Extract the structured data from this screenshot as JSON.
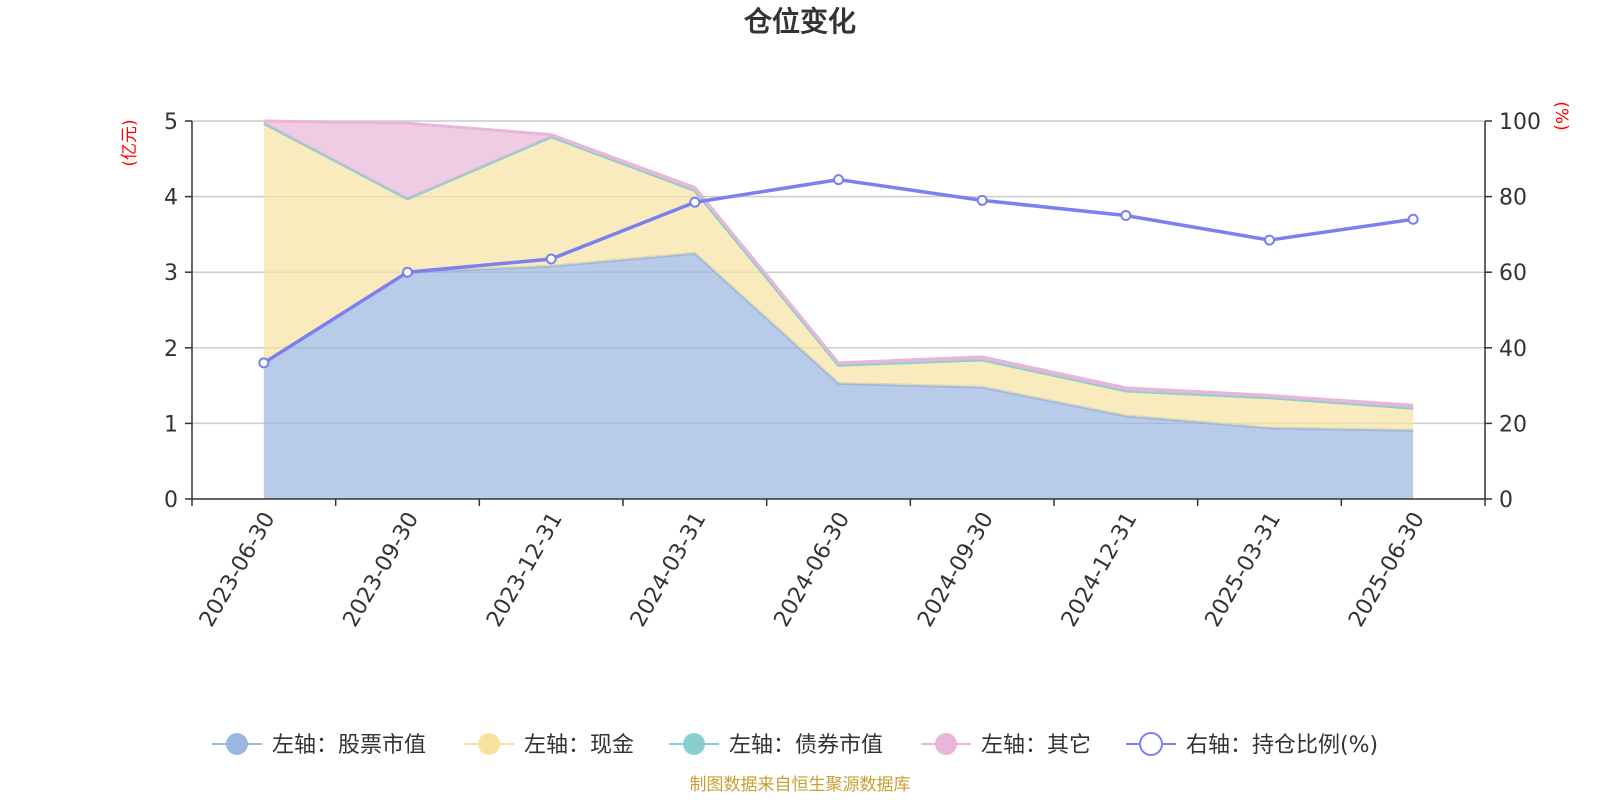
{
  "title": "仓位变化",
  "source": "制图数据来自恒生聚源数据库",
  "chart_data": {
    "type": "area",
    "categories": [
      "2023-06-30",
      "2023-09-30",
      "2023-12-31",
      "2024-03-31",
      "2024-06-30",
      "2024-09-30",
      "2024-12-31",
      "2025-03-31",
      "2025-06-30"
    ],
    "left_axis": {
      "unit": "(亿元)",
      "ylim": [
        0,
        5
      ],
      "ticks": [
        "0",
        "1",
        "2",
        "3",
        "4",
        "5"
      ]
    },
    "right_axis": {
      "unit": "(%)",
      "ylim": [
        0,
        100
      ],
      "ticks": [
        "0",
        "20",
        "40",
        "60",
        "80",
        "100"
      ]
    },
    "grid": true,
    "legend_placement": "bottom",
    "series": [
      {
        "name": "左轴：股票市值",
        "axis": "left",
        "stack": true,
        "color": "#9ab7e0",
        "values": [
          1.8,
          3.0,
          3.08,
          3.25,
          1.53,
          1.48,
          1.1,
          0.94,
          0.91
        ]
      },
      {
        "name": "左轴：现金",
        "axis": "left",
        "stack": true,
        "color": "#f7e3a1",
        "values": [
          3.17,
          0.97,
          1.71,
          0.83,
          0.24,
          0.36,
          0.33,
          0.4,
          0.29
        ]
      },
      {
        "name": "左轴：债券市值",
        "axis": "left",
        "stack": true,
        "color": "#88d0d0",
        "values": [
          0,
          0,
          0,
          0,
          0,
          0,
          0,
          0,
          0
        ]
      },
      {
        "name": "左轴：其它",
        "axis": "left",
        "stack": true,
        "color": "#e9b6d9",
        "values": [
          0.03,
          1.0,
          0.03,
          0.04,
          0.03,
          0.04,
          0.04,
          0.03,
          0.04
        ]
      },
      {
        "name": "右轴：持仓比例(%)",
        "axis": "right",
        "type": "line",
        "color": "#7b7ff0",
        "values": [
          36,
          60,
          63.5,
          78.5,
          84.5,
          79,
          75,
          68.5,
          74
        ]
      }
    ]
  }
}
